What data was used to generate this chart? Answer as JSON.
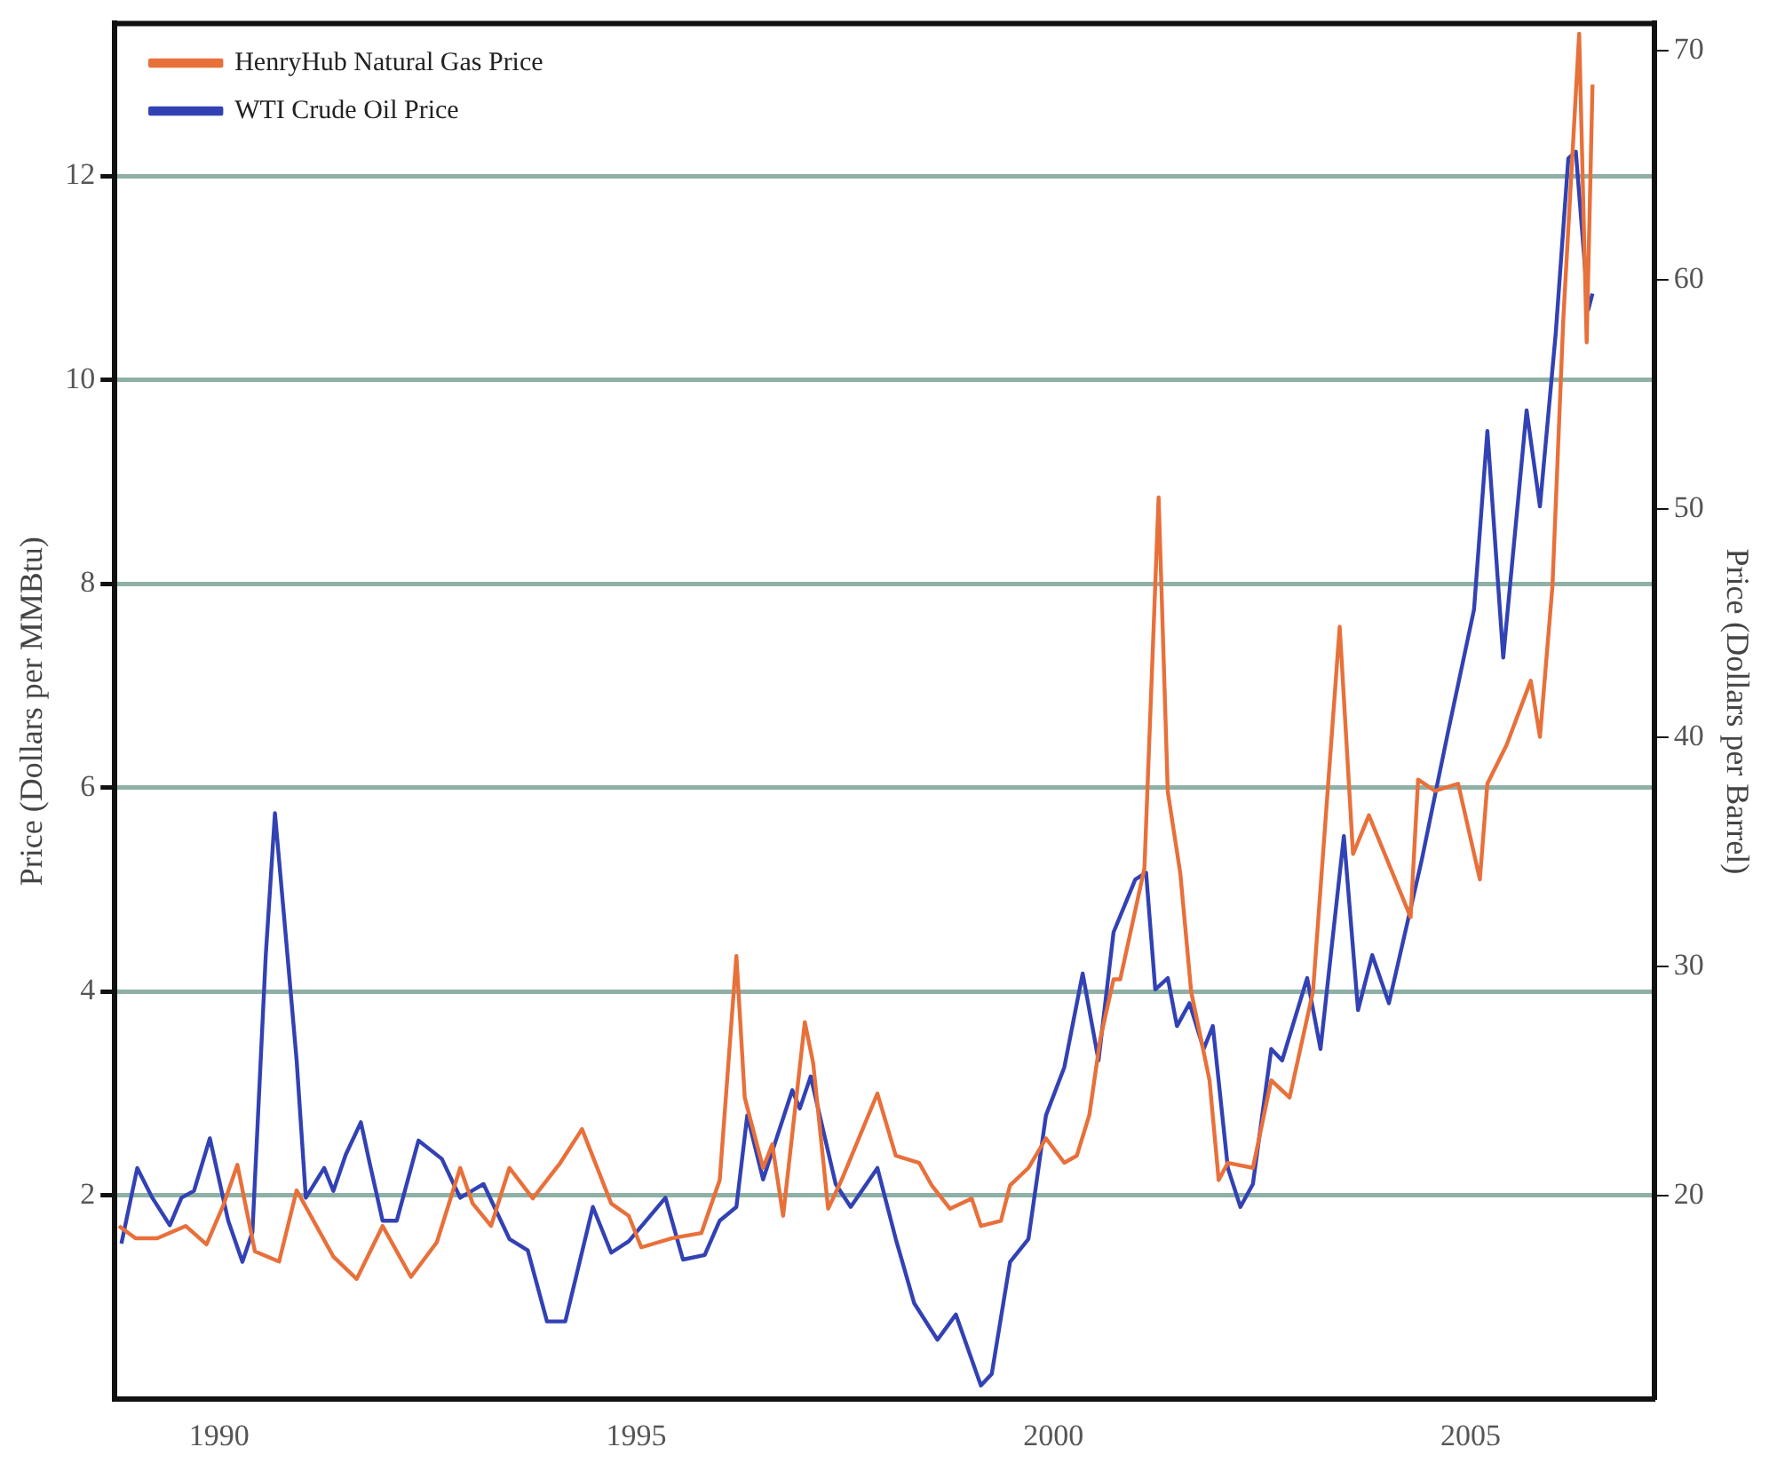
{
  "chart_data": {
    "type": "line",
    "xlabel": null,
    "ylabel": "Price (Dollars per MMBtu)",
    "y2label": "Price (Dollars per Barrel)",
    "xlim": [
      1988.75,
      2007.2
    ],
    "xticks": [
      1990,
      1995,
      2000,
      2005
    ],
    "ylim": [
      0,
      13.5
    ],
    "yticks": [
      2,
      4,
      6,
      8,
      10,
      12
    ],
    "y2lim": [
      11.1,
      71.2
    ],
    "y2ticks": [
      20,
      30,
      40,
      50,
      60,
      70
    ],
    "grid": "y",
    "legend": "top left",
    "marker": "none",
    "line_style": "solid",
    "series": [
      {
        "name": "HenryHub Natural Gas Price",
        "color": "#e8703a",
        "x": [
          1988.8,
          1989.0,
          1989.26,
          1989.6,
          1989.85,
          1990.05,
          1990.22,
          1990.43,
          1990.72,
          1990.93,
          1991.37,
          1991.65,
          1991.96,
          1992.3,
          1992.61,
          1992.89,
          1993.04,
          1993.26,
          1993.48,
          1993.76,
          1994.09,
          1994.35,
          1994.7,
          1994.91,
          1995.06,
          1995.43,
          1995.78,
          1996.0,
          1996.2,
          1996.3,
          1996.52,
          1996.63,
          1996.76,
          1997.02,
          1997.12,
          1997.3,
          1997.46,
          1997.89,
          1998.11,
          1998.39,
          1998.54,
          1998.76,
          1999.02,
          1999.13,
          1999.37,
          1999.48,
          1999.7,
          1999.91,
          2000.13,
          2000.28,
          2000.43,
          2000.56,
          2000.72,
          2000.8,
          2001.09,
          2001.26,
          2001.37,
          2001.52,
          2001.65,
          2001.87,
          2001.98,
          2002.09,
          2002.39,
          2002.61,
          2002.83,
          2003.11,
          2003.43,
          2003.59,
          2003.78,
          2004.28,
          2004.37,
          2004.57,
          2004.85,
          2005.11,
          2005.2,
          2005.43,
          2005.72,
          2005.83,
          2005.98,
          2006.11,
          2006.3,
          2006.39,
          2006.46
        ],
        "values": [
          1.7,
          1.58,
          1.58,
          1.7,
          1.52,
          1.9,
          2.3,
          1.45,
          1.35,
          2.05,
          1.4,
          1.18,
          1.7,
          1.2,
          1.54,
          2.27,
          1.92,
          1.7,
          2.27,
          1.97,
          2.32,
          2.65,
          1.92,
          1.8,
          1.49,
          1.58,
          1.63,
          2.15,
          4.35,
          2.96,
          2.27,
          2.5,
          1.8,
          3.7,
          3.3,
          1.87,
          2.15,
          3.0,
          2.39,
          2.32,
          2.1,
          1.87,
          1.97,
          1.7,
          1.75,
          2.1,
          2.27,
          2.56,
          2.32,
          2.39,
          2.79,
          3.53,
          4.12,
          4.12,
          5.21,
          8.85,
          5.96,
          5.16,
          4.0,
          3.13,
          2.15,
          2.32,
          2.27,
          3.13,
          2.96,
          4.0,
          7.58,
          5.35,
          5.73,
          4.73,
          6.08,
          5.97,
          6.04,
          5.1,
          6.04,
          6.42,
          7.05,
          6.5,
          7.98,
          10.6,
          13.4,
          10.37,
          12.9
        ]
      },
      {
        "name": "WTI Crude Oil Price",
        "color": "#3242b4",
        "axis": "y2",
        "x": [
          1988.83,
          1989.02,
          1989.2,
          1989.41,
          1989.55,
          1989.7,
          1989.89,
          1990.11,
          1990.28,
          1990.4,
          1990.56,
          1990.67,
          1990.82,
          1990.93,
          1991.04,
          1991.26,
          1991.37,
          1991.52,
          1991.7,
          1991.8,
          1991.96,
          1992.13,
          1992.39,
          1992.67,
          1992.89,
          1993.17,
          1993.48,
          1993.7,
          1993.93,
          1994.15,
          1994.48,
          1994.7,
          1994.91,
          1995.35,
          1995.56,
          1995.82,
          1996.0,
          1996.2,
          1996.33,
          1996.52,
          1996.87,
          1996.96,
          1997.09,
          1997.39,
          1997.57,
          1997.89,
          1998.11,
          1998.33,
          1998.61,
          1998.83,
          1999.13,
          1999.26,
          1999.48,
          1999.7,
          1999.91,
          2000.13,
          2000.35,
          2000.54,
          2000.72,
          2000.98,
          2001.11,
          2001.22,
          2001.37,
          2001.48,
          2001.63,
          2001.8,
          2001.91,
          2002.09,
          2002.24,
          2002.39,
          2002.61,
          2002.74,
          2003.04,
          2003.2,
          2003.48,
          2003.65,
          2003.82,
          2004.02,
          2004.41,
          2004.72,
          2005.04,
          2005.2,
          2005.39,
          2005.67,
          2005.83,
          2006.02,
          2006.17,
          2006.26,
          2006.41,
          2006.46
        ],
        "values": [
          17.9,
          21.2,
          19.9,
          18.7,
          19.9,
          20.2,
          22.5,
          18.9,
          17.1,
          18.4,
          30.5,
          36.7,
          30.5,
          25.9,
          19.9,
          21.2,
          20.2,
          21.8,
          23.2,
          21.5,
          18.9,
          18.9,
          22.4,
          21.6,
          19.9,
          20.5,
          18.1,
          17.6,
          14.5,
          14.5,
          19.5,
          17.5,
          18.0,
          19.9,
          17.2,
          17.4,
          18.9,
          19.5,
          23.5,
          20.7,
          24.6,
          23.8,
          25.2,
          20.5,
          19.5,
          21.2,
          18.1,
          15.3,
          13.7,
          14.8,
          11.7,
          12.2,
          17.1,
          18.1,
          23.5,
          25.6,
          29.7,
          25.9,
          31.5,
          33.8,
          34.1,
          29.0,
          29.5,
          27.4,
          28.4,
          26.4,
          27.4,
          21.2,
          19.5,
          20.5,
          26.4,
          25.9,
          29.5,
          26.4,
          35.7,
          28.1,
          30.5,
          28.4,
          34.6,
          40.1,
          45.6,
          53.4,
          43.5,
          54.3,
          50.1,
          57.7,
          65.3,
          65.6,
          58.7,
          59.4
        ]
      }
    ]
  }
}
